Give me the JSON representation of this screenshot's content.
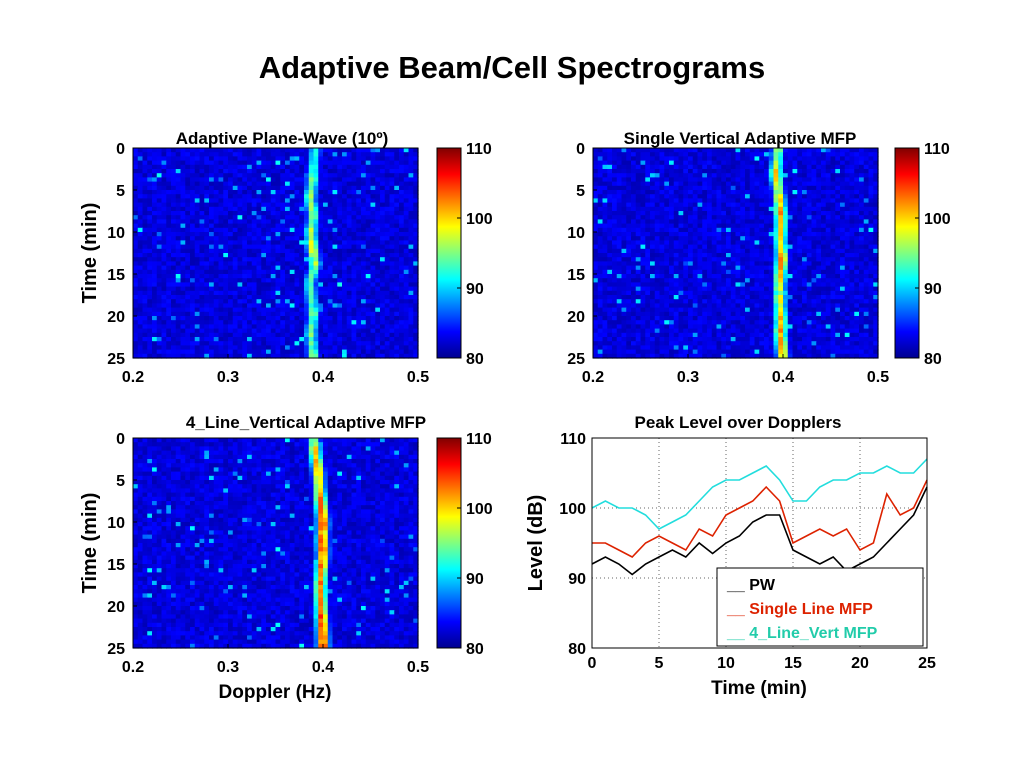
{
  "slide": {
    "title": "Adaptive Beam/Cell Spectrograms"
  },
  "chart_data": [
    {
      "type": "heatmap",
      "title": "Adaptive Plane-Wave (10º)",
      "xlabel": "",
      "ylabel": "Time (min)",
      "xlim": [
        0.2,
        0.5
      ],
      "xticks": [
        "0.2",
        "0.3",
        "0.4",
        "0.5"
      ],
      "ylim": [
        0,
        25
      ],
      "yticks": [
        "0",
        "5",
        "10",
        "15",
        "20",
        "25"
      ],
      "colorbar": {
        "range": [
          80,
          110
        ],
        "ticks": [
          "80",
          "90",
          "100",
          "110"
        ]
      },
      "ridge": {
        "time": [
          0,
          2,
          4,
          6,
          8,
          10,
          12,
          14,
          16,
          18,
          20,
          22,
          24,
          25
        ],
        "doppler": [
          0.392,
          0.39,
          0.389,
          0.386,
          0.39,
          0.387,
          0.389,
          0.392,
          0.386,
          0.388,
          0.39,
          0.387,
          0.389,
          0.39
        ],
        "peak": [
          94,
          93,
          95,
          96,
          95,
          97,
          98,
          96,
          93,
          94,
          95,
          94,
          95,
          96
        ]
      }
    },
    {
      "type": "heatmap",
      "title": "Single Vertical Adaptive MFP",
      "xlabel": "",
      "ylabel": "",
      "xlim": [
        0.2,
        0.5
      ],
      "xticks": [
        "0.2",
        "0.3",
        "0.4",
        "0.5"
      ],
      "ylim": [
        0,
        25
      ],
      "yticks": [
        "0",
        "5",
        "10",
        "15",
        "20",
        "25"
      ],
      "colorbar": {
        "range": [
          80,
          110
        ],
        "ticks": [
          "80",
          "90",
          "100",
          "110"
        ]
      },
      "ridge": {
        "time": [
          0,
          2,
          3,
          5,
          7,
          9,
          11,
          13,
          15,
          17,
          19,
          21,
          22,
          24,
          25
        ],
        "doppler": [
          0.395,
          0.393,
          0.392,
          0.395,
          0.397,
          0.398,
          0.397,
          0.399,
          0.397,
          0.396,
          0.397,
          0.398,
          0.397,
          0.399,
          0.4
        ],
        "peak": [
          95,
          98,
          100,
          97,
          101,
          102,
          99,
          103,
          100,
          97,
          99,
          101,
          102,
          100,
          101
        ]
      }
    },
    {
      "type": "heatmap",
      "title": "4_Line_Vertical Adaptive MFP",
      "xlabel": "Doppler (Hz)",
      "ylabel": "Time (min)",
      "xlim": [
        0.2,
        0.5
      ],
      "xticks": [
        "0.2",
        "0.3",
        "0.4",
        "0.5"
      ],
      "ylim": [
        0,
        25
      ],
      "yticks": [
        "0",
        "5",
        "10",
        "15",
        "20",
        "25"
      ],
      "colorbar": {
        "range": [
          80,
          110
        ],
        "ticks": [
          "80",
          "90",
          "100",
          "110"
        ]
      },
      "ridge": {
        "time": [
          0,
          2,
          4,
          6,
          8,
          10,
          12,
          14,
          16,
          18,
          20,
          22,
          24,
          25
        ],
        "doppler": [
          0.39,
          0.392,
          0.395,
          0.396,
          0.398,
          0.4,
          0.399,
          0.4,
          0.398,
          0.397,
          0.398,
          0.399,
          0.4,
          0.4
        ],
        "peak": [
          98,
          100,
          101,
          100,
          103,
          105,
          104,
          105,
          102,
          103,
          104,
          105,
          106,
          107
        ]
      }
    },
    {
      "type": "line",
      "title": "Peak Level over Dopplers",
      "xlabel": "Time (min)",
      "ylabel": "Level (dB)",
      "xlim": [
        0,
        25
      ],
      "ylim": [
        80,
        110
      ],
      "xticks": [
        "0",
        "5",
        "10",
        "15",
        "20",
        "25"
      ],
      "yticks": [
        "80",
        "90",
        "100",
        "110"
      ],
      "grid": true,
      "legend": "bottom-right",
      "x": [
        0,
        1,
        2,
        3,
        4,
        5,
        6,
        7,
        8,
        9,
        10,
        11,
        12,
        13,
        14,
        15,
        16,
        17,
        18,
        19,
        20,
        21,
        22,
        23,
        24,
        25
      ],
      "series": [
        {
          "name": "__ PW",
          "color": "#000000",
          "values": [
            92,
            93,
            92,
            90.5,
            92,
            93,
            94,
            93,
            95,
            93.5,
            95,
            96,
            98,
            99,
            99,
            94,
            93,
            92,
            93,
            91,
            92,
            93,
            95,
            97,
            99,
            103
          ]
        },
        {
          "name": "__ Single Line MFP",
          "color": "#dd2200",
          "values": [
            95,
            95,
            94,
            93,
            95,
            96,
            95,
            94,
            97,
            96,
            99,
            100,
            101,
            103,
            101,
            95,
            96,
            97,
            96,
            97,
            94,
            95,
            102,
            99,
            100,
            104
          ]
        },
        {
          "name": "__ 4_Line_Vert MFP",
          "color": "#22dddd",
          "values": [
            100,
            101,
            100,
            100,
            99,
            97,
            98,
            99,
            101,
            103,
            104,
            104,
            105,
            106,
            104,
            101,
            101,
            103,
            104,
            104,
            105,
            105,
            106,
            105,
            105,
            107
          ]
        }
      ]
    }
  ]
}
